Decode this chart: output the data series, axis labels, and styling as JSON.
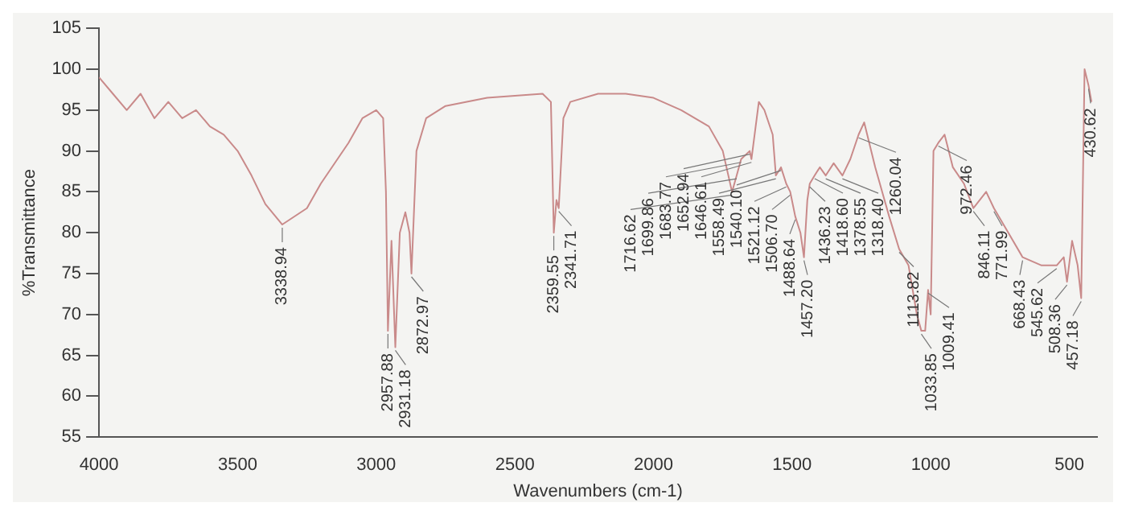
{
  "chart_data": {
    "type": "line",
    "xlabel": "Wavenumbers (cm-1)",
    "ylabel": "%Transmittance",
    "x": [
      4000,
      3950,
      3900,
      3850,
      3800,
      3750,
      3700,
      3650,
      3600,
      3550,
      3500,
      3450,
      3400,
      3338.94,
      3250,
      3200,
      3100,
      3050,
      3000,
      2975,
      2965,
      2957.88,
      2945,
      2931.18,
      2915,
      2895,
      2880,
      2872.97,
      2855,
      2820,
      2750,
      2600,
      2400,
      2370,
      2359.55,
      2350,
      2341.71,
      2325,
      2300,
      2200,
      2100,
      2000,
      1900,
      1800,
      1750,
      1716.62,
      1699.86,
      1683.77,
      1652.94,
      1646.61,
      1620,
      1600,
      1570,
      1558.49,
      1540.1,
      1521.12,
      1506.7,
      1488.64,
      1470,
      1457.2,
      1445,
      1436.23,
      1418.6,
      1400,
      1378.55,
      1350,
      1318.4,
      1290,
      1260.04,
      1240,
      1200,
      1150,
      1113.82,
      1080,
      1050,
      1033.85,
      1020,
      1009.41,
      1000,
      990,
      972.46,
      950,
      920,
      880,
      846.11,
      800,
      771.99,
      720,
      668.43,
      600,
      545.62,
      520,
      508.36,
      490,
      470,
      457.18,
      445,
      430.62,
      420
    ],
    "series": [
      {
        "color": "#c98a8a",
        "values": [
          99,
          97,
          95,
          97,
          94,
          96,
          94,
          95,
          93,
          92,
          90,
          87,
          83.5,
          81,
          83,
          86,
          91,
          94,
          95,
          94,
          85,
          68,
          79,
          66,
          80,
          82.5,
          80,
          75,
          90,
          94,
          95.5,
          96.5,
          97,
          96,
          80,
          84,
          83,
          94,
          96,
          97,
          97,
          96.5,
          95,
          93,
          90,
          85,
          87,
          89,
          90,
          89,
          96,
          95,
          92,
          87,
          88,
          86,
          85,
          82,
          80,
          77,
          84,
          86,
          87,
          88,
          87,
          88.5,
          87,
          89,
          92,
          93.5,
          88,
          82,
          78,
          76,
          70,
          68,
          68,
          73,
          70,
          90,
          91,
          92,
          88,
          86,
          83,
          85,
          83,
          80,
          77,
          76,
          76,
          77,
          74,
          79,
          76,
          72,
          100,
          98,
          96
        ]
      }
    ],
    "xlim": [
      4000,
      400
    ],
    "xticks": [
      4000,
      3500,
      3000,
      2500,
      2000,
      1500,
      1000,
      500
    ],
    "ylim": [
      55,
      105
    ],
    "yticks": [
      55,
      60,
      65,
      70,
      75,
      80,
      85,
      90,
      95,
      100,
      105
    ],
    "grid": false,
    "legend": false,
    "marker": "none",
    "line_style": "solid",
    "annotations": [
      {
        "text": "3338.94",
        "x": 3338.94,
        "y": 81
      },
      {
        "text": "2957.88",
        "x": 2957.88,
        "y": 68
      },
      {
        "text": "2931.18",
        "x": 2931.18,
        "y": 66
      },
      {
        "text": "2872.97",
        "x": 2872.97,
        "y": 75
      },
      {
        "text": "2359.55",
        "x": 2359.55,
        "y": 80
      },
      {
        "text": "2341.71",
        "x": 2341.71,
        "y": 83
      },
      {
        "text": "1716.62",
        "x": 1716.62,
        "y": 85
      },
      {
        "text": "1699.86",
        "x": 1699.86,
        "y": 87
      },
      {
        "text": "1683.77",
        "x": 1683.77,
        "y": 89
      },
      {
        "text": "1652.94",
        "x": 1652.94,
        "y": 90
      },
      {
        "text": "1646.61",
        "x": 1646.61,
        "y": 89
      },
      {
        "text": "1558.49",
        "x": 1558.49,
        "y": 87
      },
      {
        "text": "1540.10",
        "x": 1540.1,
        "y": 88
      },
      {
        "text": "1521.12",
        "x": 1521.12,
        "y": 86
      },
      {
        "text": "1506.70",
        "x": 1506.7,
        "y": 85
      },
      {
        "text": "1488.64",
        "x": 1488.64,
        "y": 82
      },
      {
        "text": "1457.20",
        "x": 1457.2,
        "y": 77
      },
      {
        "text": "1436.23",
        "x": 1436.23,
        "y": 86
      },
      {
        "text": "1418.60",
        "x": 1418.6,
        "y": 87
      },
      {
        "text": "1378.55",
        "x": 1378.55,
        "y": 87
      },
      {
        "text": "1318.40",
        "x": 1318.4,
        "y": 87
      },
      {
        "text": "1260.04",
        "x": 1260.04,
        "y": 92
      },
      {
        "text": "1113.82",
        "x": 1113.82,
        "y": 78
      },
      {
        "text": "1033.85",
        "x": 1033.85,
        "y": 68
      },
      {
        "text": "1009.41",
        "x": 1009.41,
        "y": 73
      },
      {
        "text": "972.46",
        "x": 972.46,
        "y": 91
      },
      {
        "text": "846.11",
        "x": 846.11,
        "y": 83
      },
      {
        "text": "771.99",
        "x": 771.99,
        "y": 83
      },
      {
        "text": "668.43",
        "x": 668.43,
        "y": 77
      },
      {
        "text": "545.62",
        "x": 545.62,
        "y": 76
      },
      {
        "text": "508.36",
        "x": 508.36,
        "y": 74
      },
      {
        "text": "457.18",
        "x": 457.18,
        "y": 72
      },
      {
        "text": "430.62",
        "x": 430.62,
        "y": 98
      }
    ]
  }
}
